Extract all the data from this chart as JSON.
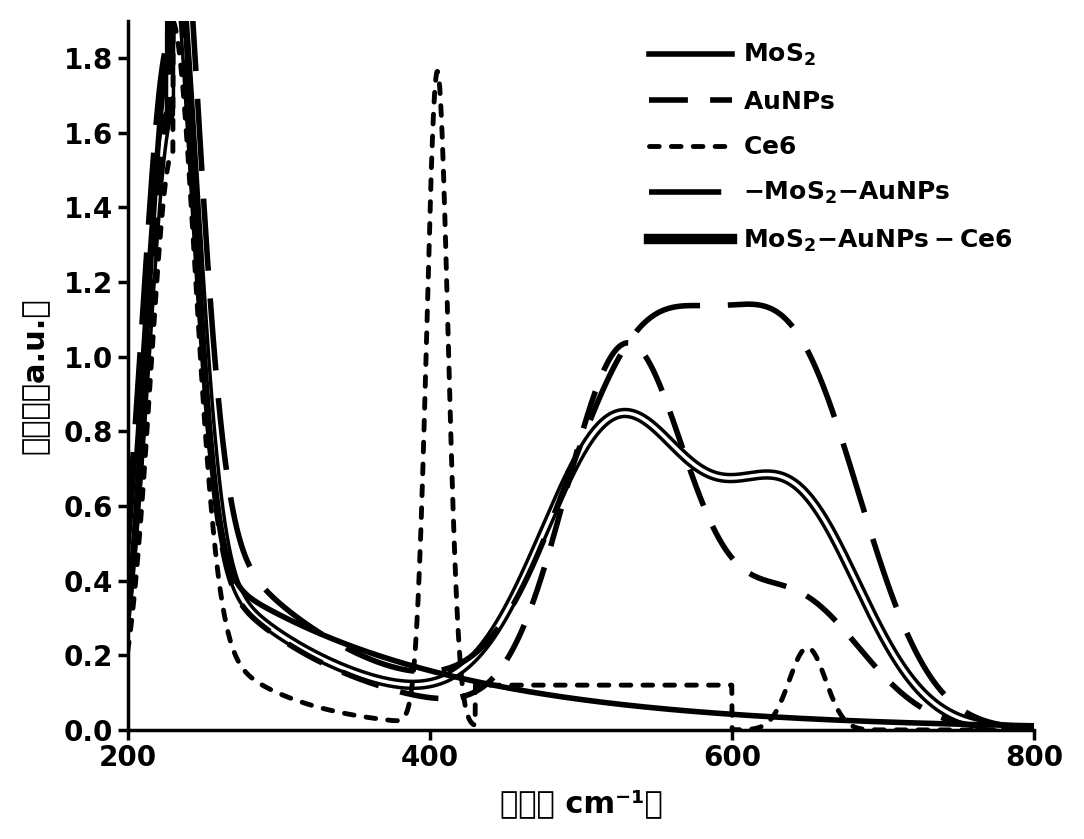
{
  "title": "",
  "xlabel": "波长（ cm⁻¹）",
  "ylabel": "吸光度（a.u.）",
  "xlim": [
    200,
    800
  ],
  "ylim": [
    0,
    1.9
  ],
  "yticks": [
    0,
    0.2,
    0.4,
    0.6,
    0.8,
    1.0,
    1.2,
    1.4,
    1.6,
    1.8
  ],
  "xticks": [
    200,
    400,
    600,
    800
  ],
  "background_color": "#ffffff",
  "line_color": "#000000"
}
